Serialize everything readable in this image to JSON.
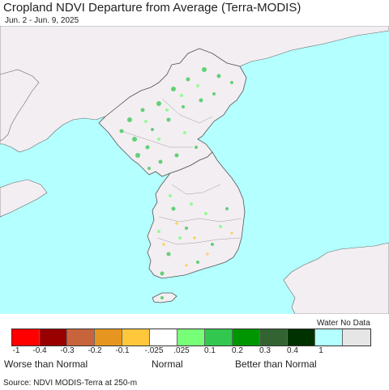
{
  "title": "Cropland NDVI Departure from Average (Terra-MODIS)",
  "subtitle": "Jun. 2 - Jun. 9, 2025",
  "legend": {
    "water_no_data_label": "Water No Data",
    "colors": [
      "#ff0000",
      "#990000",
      "#c8643c",
      "#e6961e",
      "#ffc83c",
      "#ffffff",
      "#78ff78",
      "#32c850",
      "#009600",
      "#326432",
      "#003200",
      "#b4ffff",
      "#e6e6e6"
    ],
    "ticks": [
      "-1",
      "-0.4",
      "-0.3",
      "-0.2",
      "-0.1",
      "-.025",
      ".025",
      "0.1",
      "0.2",
      "0.3",
      "0.4",
      "1"
    ],
    "worse_label": "Worse than Normal",
    "normal_label": "Normal",
    "better_label": "Better than Normal"
  },
  "map_colors": {
    "water": "#b4ffff",
    "land": "#f3eef2",
    "border": "#666666"
  },
  "source": "Source: NDVI MODIS-Terra at 250-m"
}
